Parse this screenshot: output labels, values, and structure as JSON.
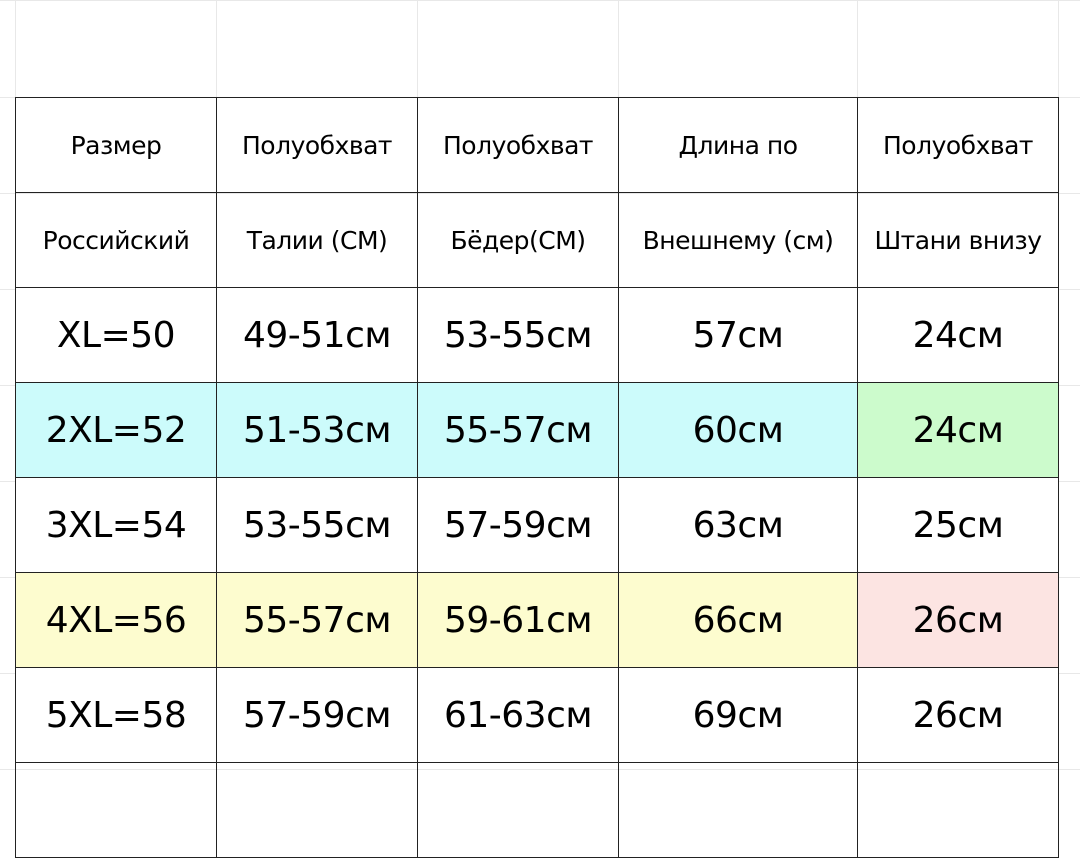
{
  "table": {
    "header_row_1": [
      "Размер",
      "Полуобхват",
      "Полуобхват",
      "Длина по",
      "Полуобхват"
    ],
    "header_row_2": [
      "Российский",
      "Талии (CM)",
      "Бёдер(CM)",
      "Внешнему (см)",
      "Штани внизу"
    ],
    "rows": [
      {
        "cells": [
          "XL=50",
          "49-51см",
          "53-55см",
          "57см",
          "24см"
        ],
        "fills": [
          "#ffffff",
          "#ffffff",
          "#ffffff",
          "#ffffff",
          "#ffffff"
        ]
      },
      {
        "cells": [
          "2XL=52",
          "51-53см",
          "55-57см",
          "60см",
          "24см"
        ],
        "fills": [
          "#ccfbfb",
          "#ccfbfb",
          "#ccfbfb",
          "#ccfbfb",
          "#ccfbcc"
        ]
      },
      {
        "cells": [
          "3XL=54",
          "53-55см",
          "57-59см",
          "63см",
          "25см"
        ],
        "fills": [
          "#ffffff",
          "#ffffff",
          "#ffffff",
          "#ffffff",
          "#ffffff"
        ]
      },
      {
        "cells": [
          "4XL=56",
          "55-57см",
          "59-61см",
          "66см",
          "26см"
        ],
        "fills": [
          "#fdfccf",
          "#fdfccf",
          "#fdfccf",
          "#fdfccf",
          "#fce4e2"
        ]
      },
      {
        "cells": [
          "5XL=58",
          "57-59см",
          "61-63см",
          "69см",
          "26см"
        ],
        "fills": [
          "#ffffff",
          "#ffffff",
          "#ffffff",
          "#ffffff",
          "#ffffff"
        ]
      }
    ]
  }
}
